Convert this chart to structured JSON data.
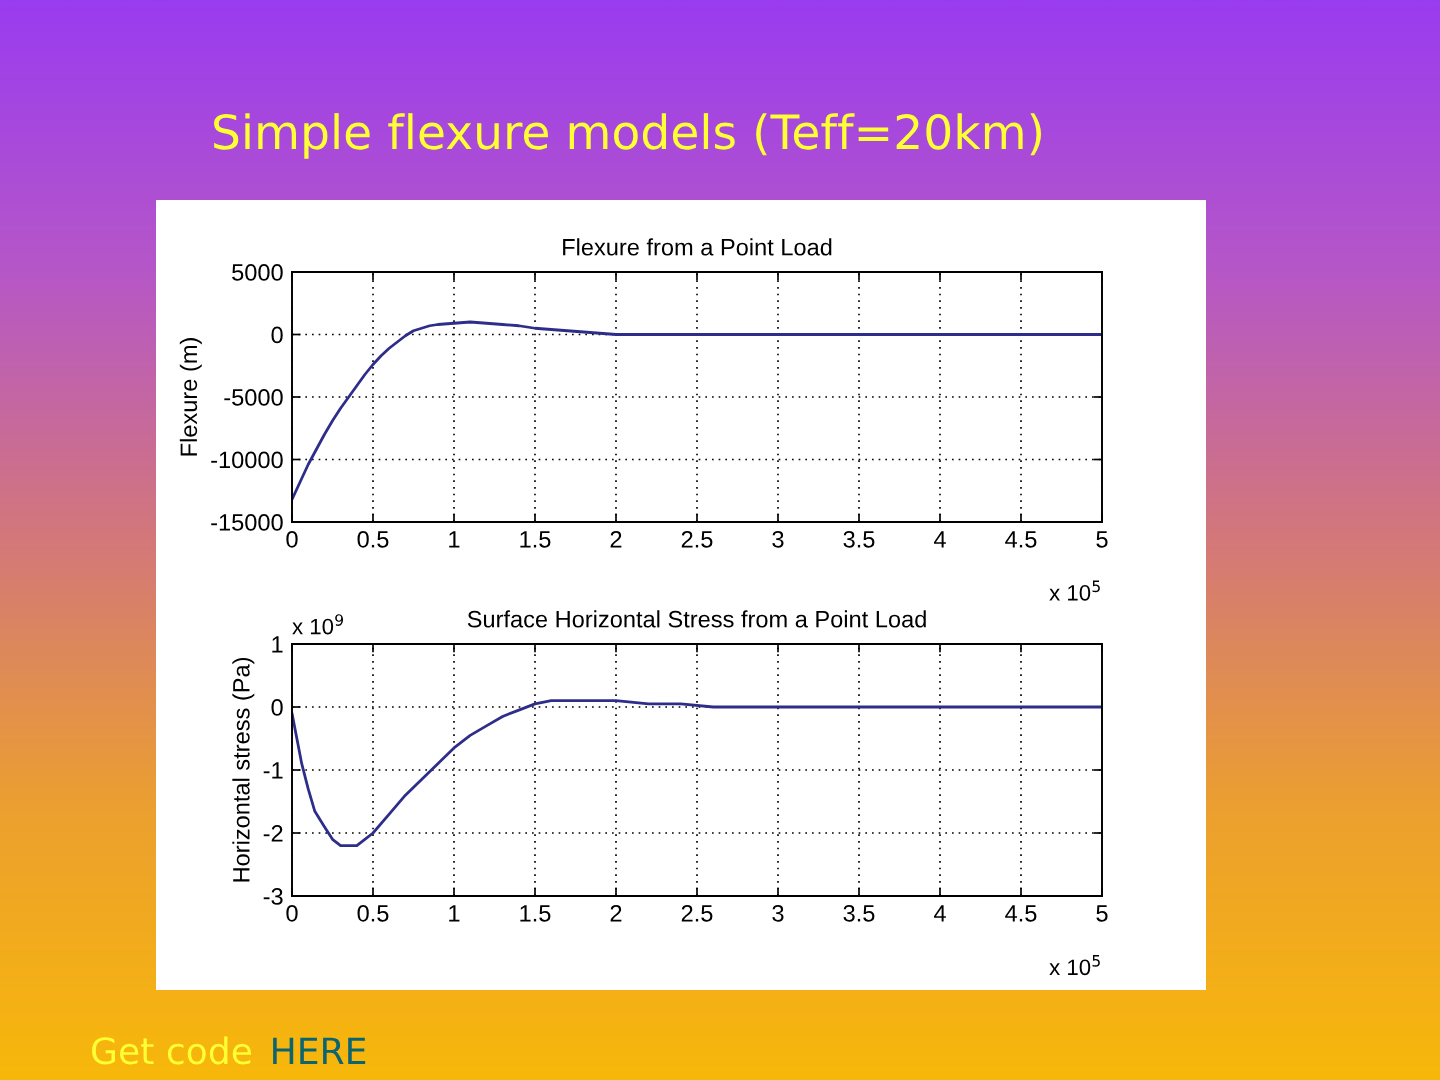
{
  "chart_data": [
    {
      "type": "line",
      "title": "Flexure from a Point Load",
      "ylabel": "Flexure (m)",
      "annotations": [
        "Simple flexure models (Teff=20km)",
        "x 10$^{5}$"
      ],
      "x": [
        0,
        0.05,
        0.1,
        0.15,
        0.2,
        0.25,
        0.3,
        0.35,
        0.4,
        0.45,
        0.5,
        0.55,
        0.6,
        0.65,
        0.7,
        0.75,
        0.8,
        0.85,
        0.9,
        1.0,
        1.1,
        1.2,
        1.3,
        1.4,
        1.5,
        1.6,
        1.7,
        1.8,
        1.9,
        2.0,
        2.5,
        3,
        4,
        5
      ],
      "values": [
        -13200,
        -11800,
        -10400,
        -9200,
        -8000,
        -6900,
        -5900,
        -5000,
        -4100,
        -3200,
        -2400,
        -1700,
        -1100,
        -600,
        -100,
        300,
        500,
        700,
        800,
        900,
        1000,
        900,
        800,
        700,
        500,
        400,
        300,
        200,
        100,
        0,
        0,
        0,
        0,
        0
      ],
      "color": "#2e2e8a",
      "xlim": [
        0,
        5
      ],
      "xticks": [
        0,
        0.5,
        1,
        1.5,
        2,
        2.5,
        3,
        3.5,
        4,
        4.5,
        5
      ],
      "ylim": [
        -15000,
        5000
      ],
      "yticks": [
        -15000,
        -10000,
        -5000,
        0,
        5000
      ],
      "grid": true
    },
    {
      "type": "line",
      "title": "Surface Horizontal Stress from a Point Load",
      "ylabel": "Horizontal stress (Pa)",
      "annotations": [
        "x 10$^{9}$",
        "x 10$^{5}$",
        "Get code",
        "HERE"
      ],
      "x": [
        0,
        0.03,
        0.06,
        0.1,
        0.14,
        0.2,
        0.25,
        0.3,
        0.35,
        0.4,
        0.45,
        0.5,
        0.6,
        0.7,
        0.8,
        0.9,
        1.0,
        1.1,
        1.2,
        1.3,
        1.4,
        1.5,
        1.6,
        1.7,
        1.8,
        2.0,
        2.2,
        2.4,
        2.6,
        3,
        4,
        5
      ],
      "values": [
        -0.1,
        -0.5,
        -0.9,
        -1.3,
        -1.65,
        -1.9,
        -2.1,
        -2.2,
        -2.2,
        -2.2,
        -2.1,
        -2.0,
        -1.7,
        -1.4,
        -1.15,
        -0.9,
        -0.65,
        -0.45,
        -0.3,
        -0.15,
        -0.05,
        0.05,
        0.1,
        0.1,
        0.1,
        0.1,
        0.05,
        0.05,
        0,
        0,
        0,
        0
      ],
      "color": "#2e2e8a",
      "xlim": [
        0,
        5
      ],
      "xticks": [
        0,
        0.5,
        1,
        1.5,
        2,
        2.5,
        3,
        3.5,
        4,
        4.5,
        5
      ],
      "ylim": [
        -3,
        1
      ],
      "yticks": [
        -3,
        -2,
        -1,
        0,
        1
      ],
      "grid": true
    }
  ]
}
